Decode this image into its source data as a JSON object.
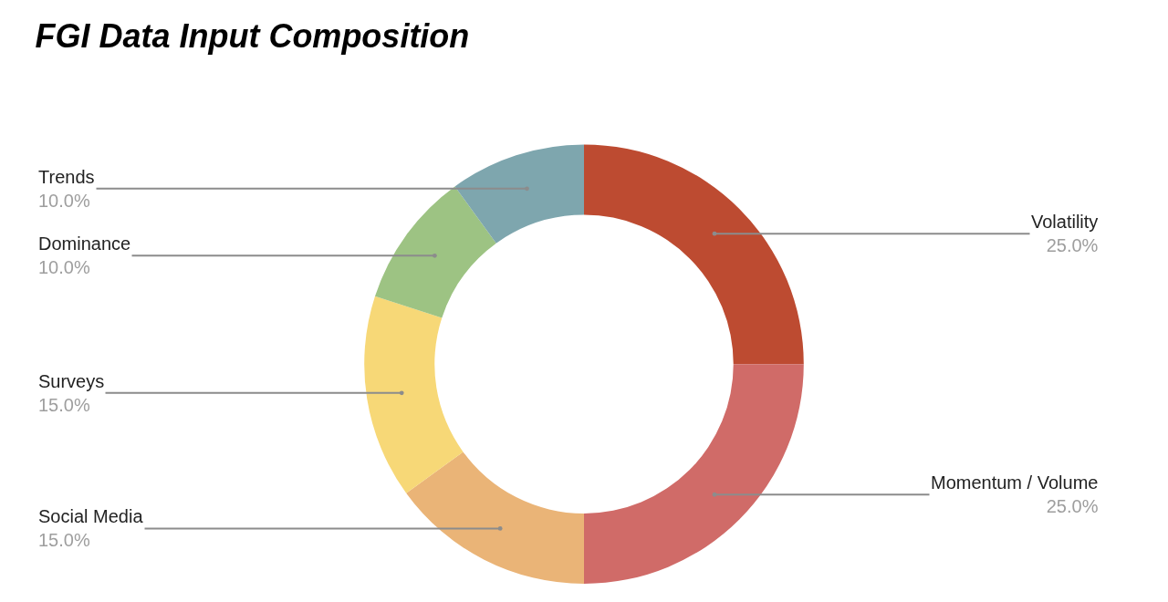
{
  "chart_data": {
    "type": "donut",
    "title": "FGI Data Input Composition",
    "categories": [
      "Volatility",
      "Momentum / Volume",
      "Social Media",
      "Surveys",
      "Dominance",
      "Trends"
    ],
    "values": [
      25,
      25,
      15,
      15,
      10,
      10
    ],
    "value_labels": [
      "25.0%",
      "25.0%",
      "15.0%",
      "15.0%",
      "10.0%",
      "10.0%"
    ],
    "colors": [
      "#bd4b31",
      "#d06b68",
      "#eab477",
      "#f7d877",
      "#9dc383",
      "#7ea6ae"
    ],
    "legend": false
  }
}
